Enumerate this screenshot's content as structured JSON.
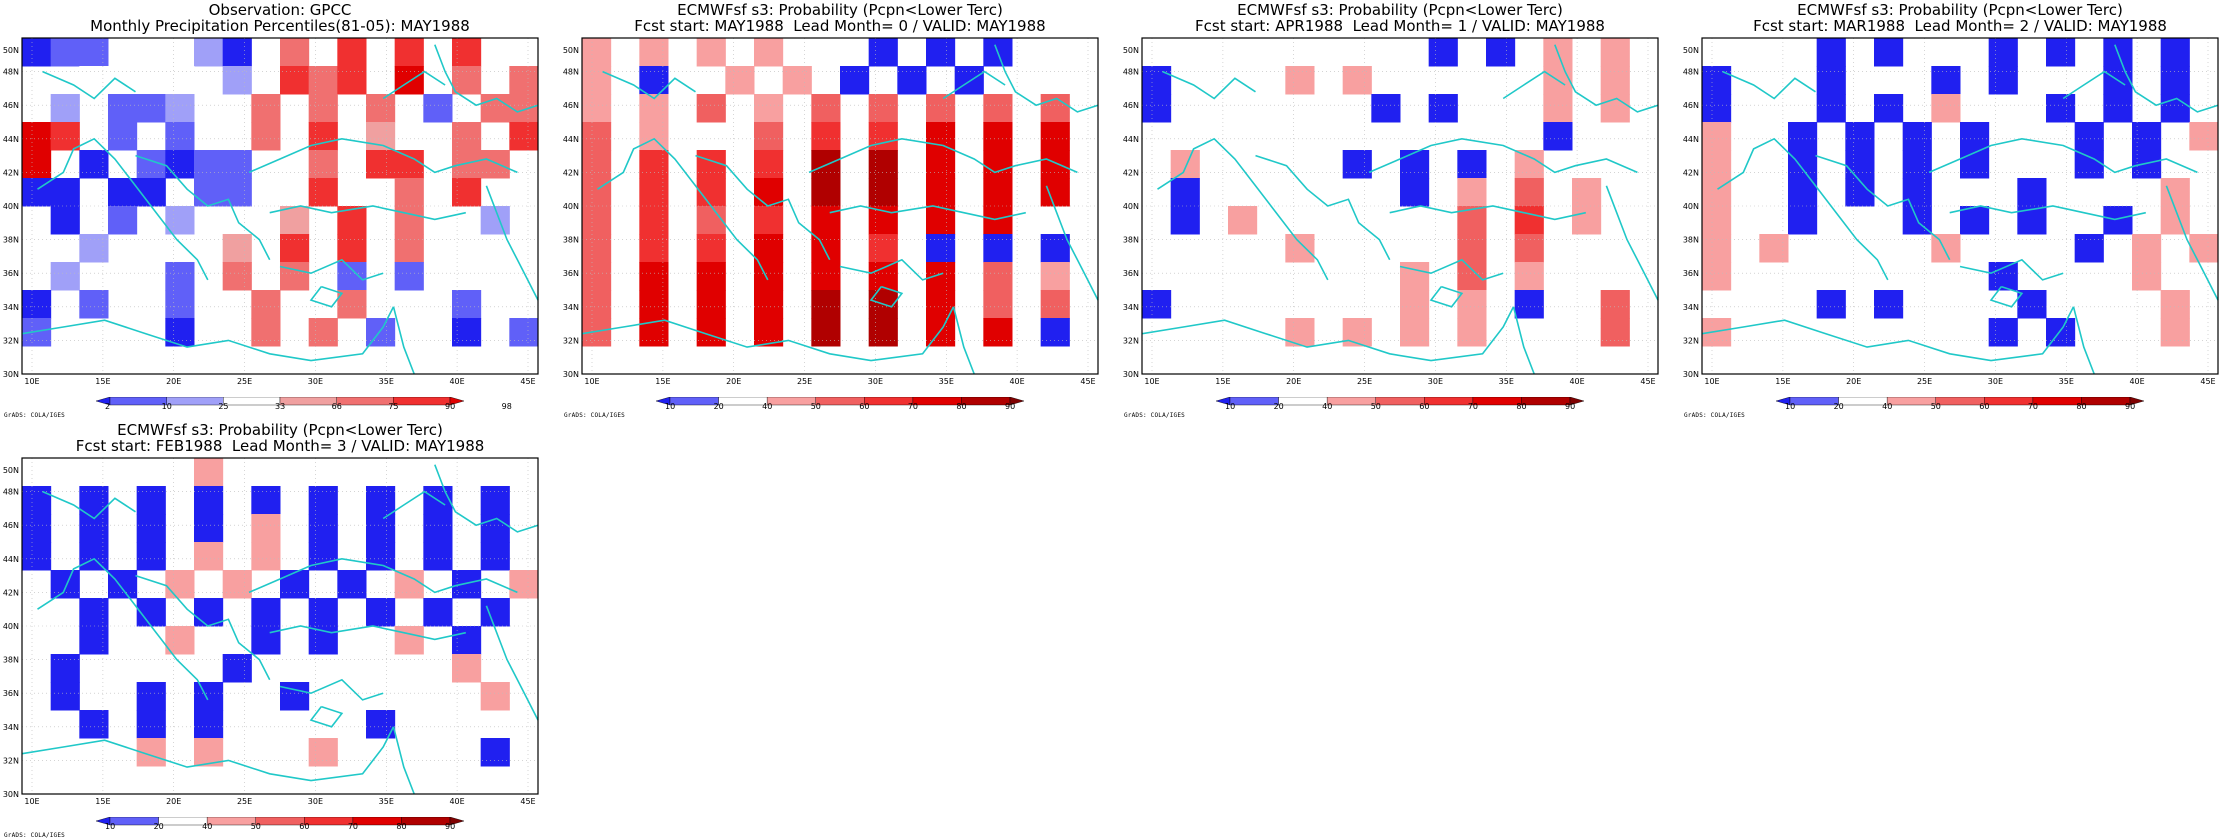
{
  "panels": [
    {
      "id": "obs",
      "title1": "Observation: GPCC",
      "title2": "Monthly Precipitation Percentiles(81-05): MAY1988",
      "colorbar": {
        "ticks": [
          "2",
          "10",
          "25",
          "33",
          "66",
          "75",
          "90",
          "98"
        ]
      },
      "credit": "GrADS: COLA/IGES"
    },
    {
      "id": "lead0",
      "title1": "ECMWFsf s3: Probability (Pcpn<Lower Terc)",
      "title2": "Fcst start: MAY1988  Lead Month= 0 / VALID: MAY1988",
      "colorbar": {
        "ticks": [
          "10",
          "20",
          "40",
          "50",
          "60",
          "70",
          "80",
          "90"
        ]
      },
      "credit": "GrADS: COLA/IGES"
    },
    {
      "id": "lead1",
      "title1": "ECMWFsf s3: Probability (Pcpn<Lower Terc)",
      "title2": "Fcst start: APR1988  Lead Month= 1 / VALID: MAY1988",
      "colorbar": {
        "ticks": [
          "10",
          "20",
          "40",
          "50",
          "60",
          "70",
          "80",
          "90"
        ]
      },
      "credit": "GrADS: COLA/IGES"
    },
    {
      "id": "lead2",
      "title1": "ECMWFsf s3: Probability (Pcpn<Lower Terc)",
      "title2": "Fcst start: MAR1988  Lead Month= 2 / VALID: MAY1988",
      "colorbar": {
        "ticks": [
          "10",
          "20",
          "40",
          "50",
          "60",
          "70",
          "80",
          "90"
        ]
      },
      "credit": "GrADS: COLA/IGES"
    },
    {
      "id": "lead3",
      "title1": "ECMWFsf s3: Probability (Pcpn<Lower Terc)",
      "title2": "Fcst start: FEB1988  Lead Month= 3 / VALID: MAY1988",
      "colorbar": {
        "ticks": [
          "10",
          "20",
          "40",
          "50",
          "60",
          "70",
          "80",
          "90"
        ]
      },
      "credit": "GrADS: COLA/IGES"
    }
  ],
  "axes": {
    "lat_labels": [
      "50N",
      "48N",
      "46N",
      "44N",
      "42N",
      "40N",
      "38N",
      "36N",
      "34N",
      "32N",
      "30N"
    ],
    "lon_labels": [
      "10E",
      "15E",
      "20E",
      "25E",
      "30E",
      "35E",
      "40E",
      "45E"
    ]
  },
  "palette": {
    "obs": [
      "#2020f0",
      "#6060f8",
      "#a0a0f8",
      "#ffffff",
      "#f0a0a0",
      "#f07070",
      "#f03030",
      "#e00000"
    ],
    "prob": [
      "#2020f0",
      "#6060f8",
      "#ffffff",
      "#f8a0a0",
      "#f06060",
      "#f03030",
      "#e00000",
      "#b00000",
      "#800000"
    ],
    "coast": "#20c8c8"
  }
}
